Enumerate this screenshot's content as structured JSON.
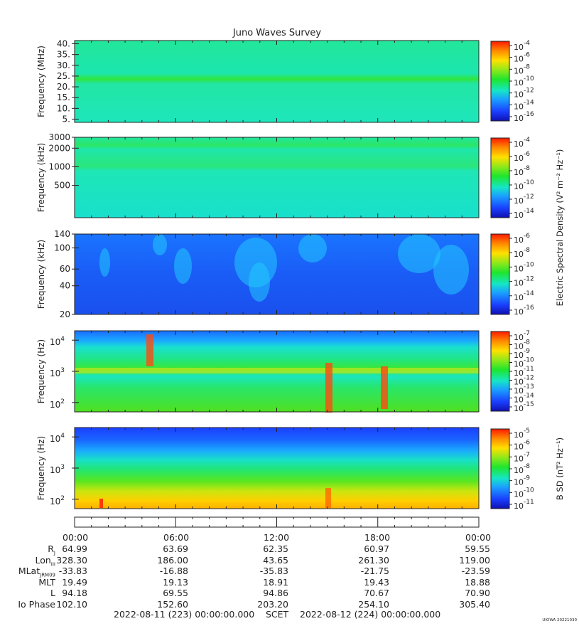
{
  "title": "Juno Waves Survey",
  "watermark": "UIOWA 20221030",
  "colors": {
    "hot": "#ff2a00",
    "warm": "#ffd000",
    "mid": "#1ee62e",
    "cool": "#16e6c6",
    "cold": "#1a60ff",
    "deep": "#1010b0"
  },
  "chart_data": [
    {
      "type": "heatmap",
      "name": "panel-1",
      "ylabel": "Frequency (MHz)",
      "yscale": "linear",
      "yticks": [
        "40.",
        "35.",
        "30.",
        "25.",
        "20.",
        "15.",
        "10.",
        "5."
      ],
      "ytick_values": [
        40,
        35,
        30,
        25,
        20,
        15,
        10,
        5
      ],
      "ylim": [
        3.5,
        41.5
      ],
      "colorbar": {
        "ticks": [
          "10",
          "10",
          "10",
          "10",
          "10",
          "10",
          "10"
        ],
        "exponents": [
          "-4",
          "-6",
          "-8",
          "-10",
          "-12",
          "-14",
          "-16"
        ],
        "label": ""
      }
    },
    {
      "type": "heatmap",
      "name": "panel-2",
      "ylabel": "Frequency (kHz)",
      "yscale": "log",
      "yticks": [
        "3000",
        "2000",
        "1000",
        "500"
      ],
      "ytick_values": [
        3000,
        2000,
        1000,
        500
      ],
      "ylim": [
        150,
        3000
      ],
      "colorbar": {
        "ticks": [
          "10",
          "10",
          "10",
          "10",
          "10",
          "10"
        ],
        "exponents": [
          "-4",
          "-6",
          "-8",
          "-10",
          "-12",
          "-14"
        ],
        "label": "Electric Spectral Density (V² m⁻² Hz⁻¹)"
      }
    },
    {
      "type": "heatmap",
      "name": "panel-3",
      "ylabel": "Frequency (kHz)",
      "yscale": "log",
      "yticks": [
        "140",
        "100",
        "60",
        "40",
        "20"
      ],
      "ytick_values": [
        140,
        100,
        60,
        40,
        20
      ],
      "ylim": [
        20,
        140
      ],
      "colorbar": {
        "ticks": [
          "10",
          "10",
          "10",
          "10",
          "10",
          "10"
        ],
        "exponents": [
          "-6",
          "-8",
          "-10",
          "-12",
          "-14",
          "-16"
        ],
        "label": ""
      }
    },
    {
      "type": "heatmap",
      "name": "panel-4",
      "ylabel": "Frequency (Hz)",
      "yscale": "log",
      "yticks": [
        "10",
        "10",
        "10"
      ],
      "ytick_exponents": [
        "4",
        "3",
        "2"
      ],
      "ytick_values": [
        10000,
        1000,
        100
      ],
      "ylim": [
        50,
        20000
      ],
      "colorbar": {
        "ticks": [
          "10",
          "10",
          "10",
          "10",
          "10",
          "10",
          "10",
          "10",
          "10"
        ],
        "exponents": [
          "-7",
          "-8",
          "-9",
          "-10",
          "-11",
          "-12",
          "-13",
          "-14",
          "-15"
        ],
        "label": ""
      }
    },
    {
      "type": "heatmap",
      "name": "panel-5",
      "ylabel": "Frequency (Hz)",
      "yscale": "log",
      "yticks": [
        "10",
        "10",
        "10"
      ],
      "ytick_exponents": [
        "4",
        "3",
        "2"
      ],
      "ytick_values": [
        10000,
        1000,
        100
      ],
      "ylim": [
        50,
        20000
      ],
      "colorbar": {
        "ticks": [
          "10",
          "10",
          "10",
          "10",
          "10",
          "10",
          "10"
        ],
        "exponents": [
          "-5",
          "-6",
          "-7",
          "-8",
          "-9",
          "-10",
          "-11"
        ],
        "label": "B SD (nT² Hz⁻¹)"
      }
    }
  ],
  "ephemeris": {
    "times": [
      "00:00",
      "06:00",
      "12:00",
      "18:00",
      "00:00"
    ],
    "rows": [
      {
        "label": "R",
        "sub": "J",
        "values": [
          "64.99",
          "63.69",
          "62.35",
          "60.97",
          "59.55"
        ]
      },
      {
        "label": "Lon",
        "sub": "III",
        "values": [
          "328.30",
          "186.00",
          "43.65",
          "261.30",
          "119.00"
        ]
      },
      {
        "label": "MLat",
        "sub": "JRM09",
        "values": [
          "-33.83",
          "-16.88",
          "-35.83",
          "-21.75",
          "-23.59"
        ]
      },
      {
        "label": "MLT",
        "sub": "",
        "values": [
          "19.49",
          "19.13",
          "18.91",
          "19.43",
          "18.88"
        ]
      },
      {
        "label": "L",
        "sub": "",
        "values": [
          "94.18",
          "69.55",
          "94.86",
          "70.67",
          "70.90"
        ]
      },
      {
        "label": "Io Phase",
        "sub": "",
        "values": [
          "102.10",
          "152.60",
          "203.20",
          "254.10",
          "305.40"
        ]
      }
    ],
    "footer_start": "2022-08-11 (223) 00:00:00.000",
    "footer_mid": "SCET",
    "footer_end": "2022-08-12 (224) 00:00:00.000"
  }
}
